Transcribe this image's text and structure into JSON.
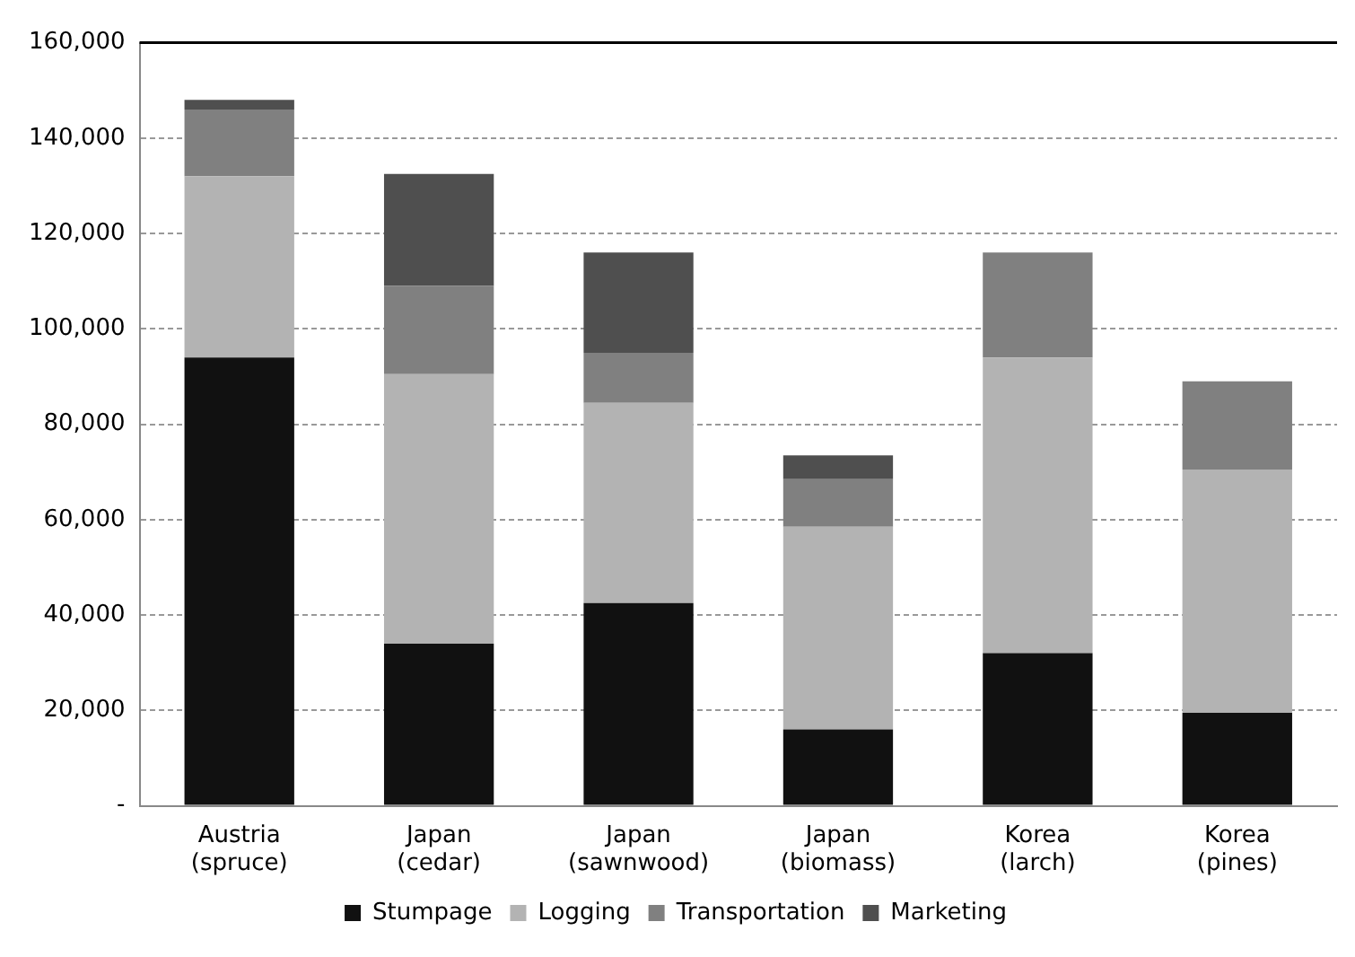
{
  "chart_data": {
    "type": "bar",
    "stacked": true,
    "categories": [
      "Austria (spruce)",
      "Japan (cedar)",
      "Japan (sawnwood)",
      "Japan (biomass)",
      "Korea (larch)",
      "Korea (pines)"
    ],
    "series": [
      {
        "name": "Stumpage",
        "color": "#111111",
        "values": [
          94000,
          34000,
          42500,
          16000,
          32000,
          19500
        ]
      },
      {
        "name": "Logging",
        "color": "#b3b3b3",
        "values": [
          38000,
          56500,
          42000,
          42500,
          62000,
          51000
        ]
      },
      {
        "name": "Transportation",
        "color": "#808080",
        "values": [
          14000,
          18500,
          10500,
          10000,
          22000,
          18500
        ]
      },
      {
        "name": "Marketing",
        "color": "#4f4f4f",
        "values": [
          2000,
          23500,
          21000,
          5000,
          null,
          null
        ]
      }
    ],
    "ylim": [
      0,
      160000
    ],
    "yticks": [
      {
        "value": 0,
        "label": "-"
      },
      {
        "value": 20000,
        "label": "20,000"
      },
      {
        "value": 40000,
        "label": "40,000"
      },
      {
        "value": 60000,
        "label": "60,000"
      },
      {
        "value": 80000,
        "label": "80,000"
      },
      {
        "value": 100000,
        "label": "100,000"
      },
      {
        "value": 120000,
        "label": "120,000"
      },
      {
        "value": 140000,
        "label": "140,000"
      },
      {
        "value": 160000,
        "label": "160,000"
      }
    ],
    "grid": "y",
    "legend": "bottom"
  }
}
